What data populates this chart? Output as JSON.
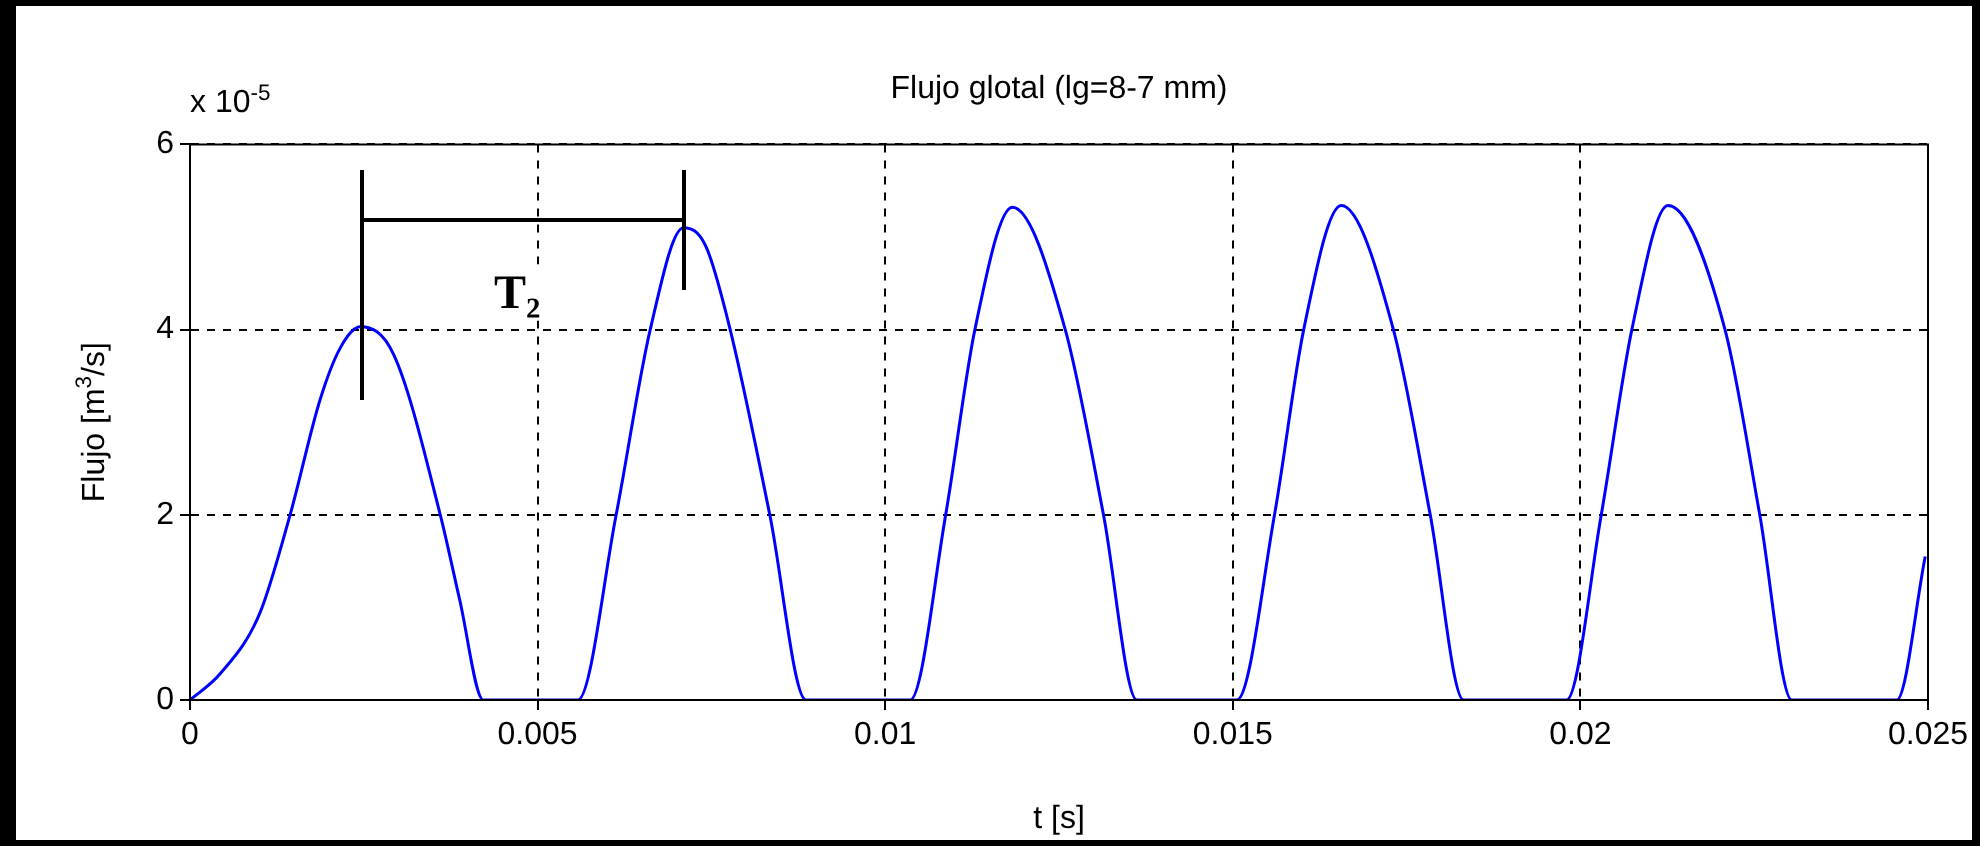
{
  "chart_data": {
    "type": "line",
    "title": "Flujo glotal (lg=8-7 mm)",
    "xlabel": "t [s]",
    "ylabel": "Flujo [m$^{3}$/s]",
    "annotations": [
      "x 10$^{-5}$",
      "T₂"
    ],
    "series": [
      {
        "color": "#0000ff",
        "x": [
          0,
          0.00043,
          0.001,
          0.00144,
          0.00187,
          0.00216,
          0.00245,
          0.00293,
          0.0036,
          0.00388,
          0.00422,
          0.00558,
          0.00613,
          0.00662,
          0.0071,
          0.00742,
          0.00777,
          0.00834,
          0.00886,
          0.01036,
          0.01087,
          0.01129,
          0.01183,
          0.01259,
          0.01314,
          0.01362,
          0.01506,
          0.0156,
          0.01602,
          0.01656,
          0.01731,
          0.01784,
          0.01832,
          0.0198,
          0.0203,
          0.02074,
          0.02126,
          0.02208,
          0.02258,
          0.02304,
          0.02455,
          0.02496
        ],
        "values": [
          0,
          0.28,
          0.93,
          2.0,
          3.24,
          3.8,
          4.03,
          3.73,
          2.0,
          1.08,
          0,
          0,
          2.0,
          4.0,
          5.1,
          4.9,
          4.0,
          2.0,
          0,
          0,
          2.0,
          4.0,
          5.32,
          4.0,
          2.0,
          0,
          0,
          2.0,
          4.0,
          5.34,
          4.0,
          2.0,
          0,
          0,
          2.0,
          4.0,
          5.34,
          4.0,
          2.0,
          0,
          0,
          1.55
        ]
      }
    ],
    "xlim": [
      0,
      0.025
    ],
    "xticks": [
      0,
      0.005,
      0.01,
      0.015,
      0.02,
      0.025
    ],
    "ylim": [
      0,
      6
    ],
    "yticks": [
      0,
      2,
      4,
      6
    ],
    "grid": true,
    "legend": false,
    "marker": "none",
    "line_style": "solid"
  }
}
